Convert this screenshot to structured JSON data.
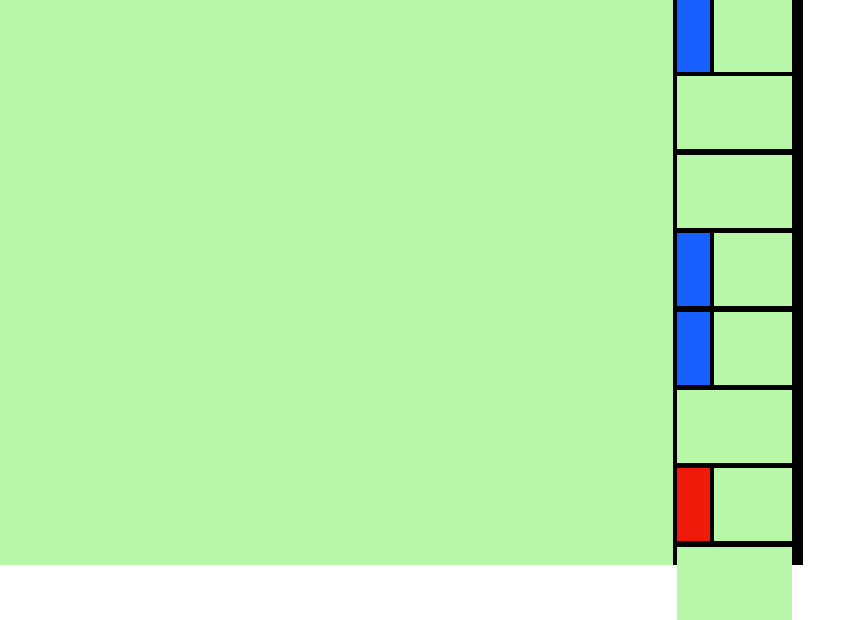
{
  "colors": {
    "background": "#b9f8a8",
    "border": "#000000",
    "blue": "#1560ff",
    "red": "#f01a0a"
  },
  "rows": [
    {
      "marker": "blue"
    },
    {
      "marker": null
    },
    {
      "marker": null
    },
    {
      "marker": "blue"
    },
    {
      "marker": "blue"
    },
    {
      "marker": null
    },
    {
      "marker": "red"
    },
    {
      "marker": null
    }
  ]
}
